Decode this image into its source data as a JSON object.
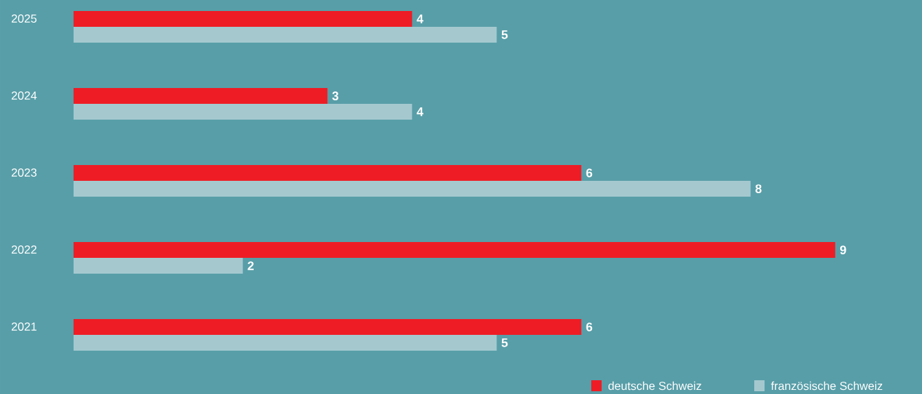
{
  "chart_data": {
    "type": "bar",
    "orientation": "horizontal",
    "categories": [
      "2025",
      "2024",
      "2023",
      "2022",
      "2021"
    ],
    "series": [
      {
        "name": "deutsche Schweiz",
        "color": "#ee1c25",
        "values": [
          4,
          3,
          6,
          9,
          6
        ]
      },
      {
        "name": "französische Schweiz",
        "color": "#a5c8cf",
        "values": [
          5,
          4,
          8,
          2,
          5
        ]
      }
    ],
    "data_labels": true,
    "legend": "bottom right"
  }
}
